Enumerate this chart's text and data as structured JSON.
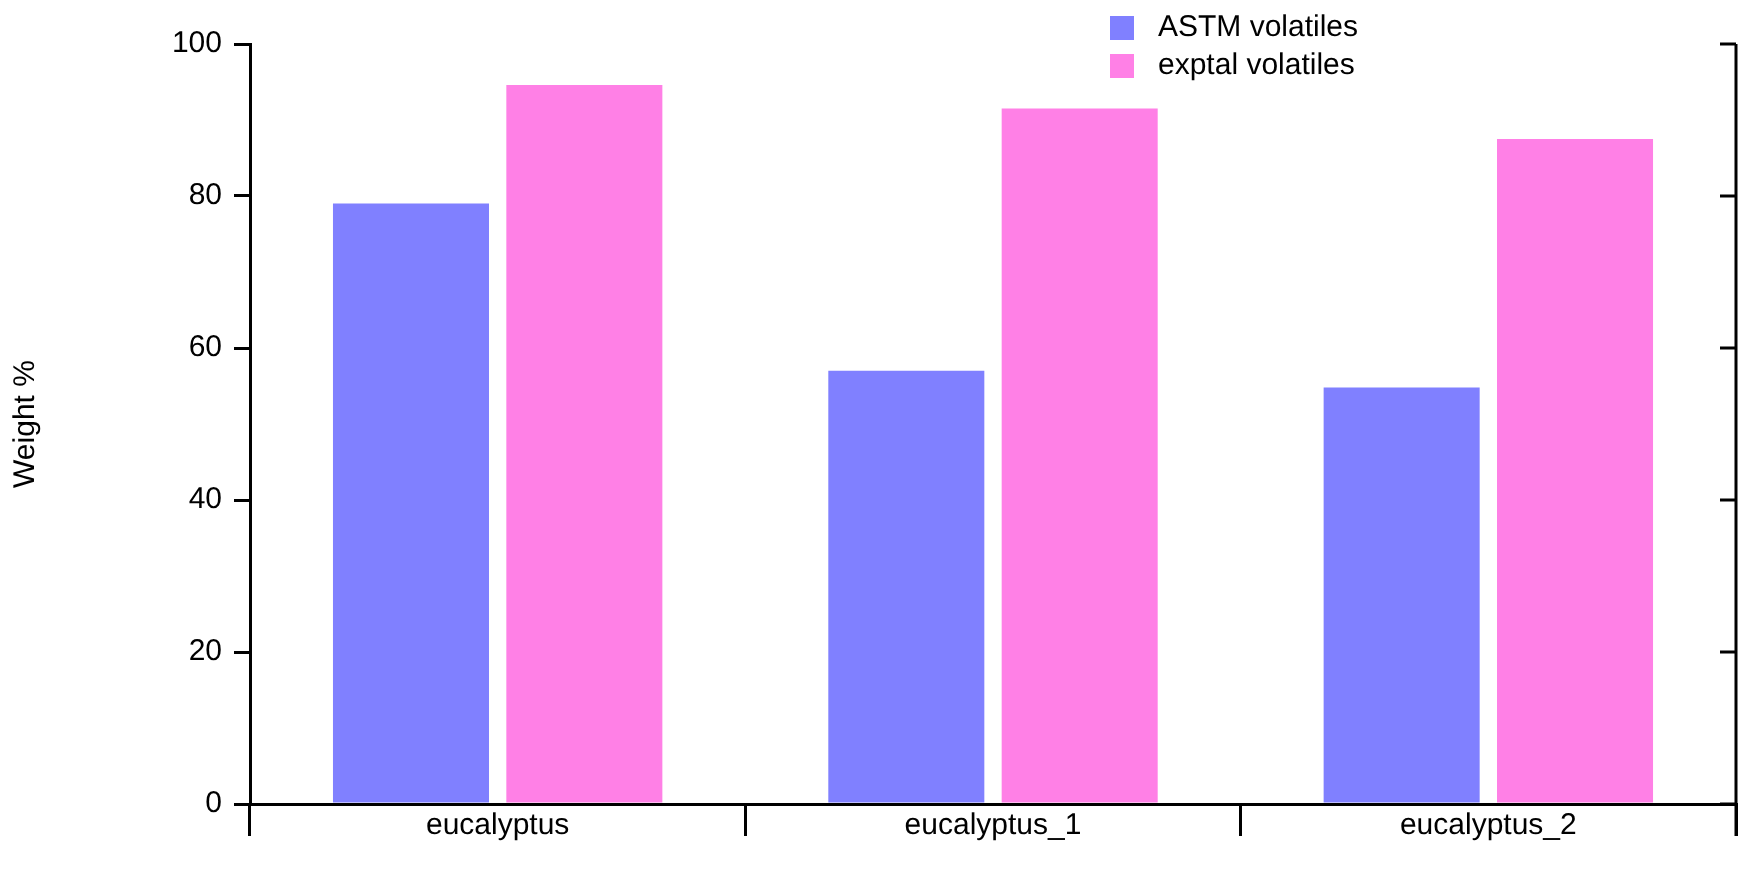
{
  "chart_data": {
    "type": "bar",
    "ylabel": "Weight %",
    "categories": [
      "eucalyptus",
      "eucalyptus_1",
      "eucalyptus_2"
    ],
    "series": [
      {
        "name": "ASTM volatiles",
        "color": "#8080ff",
        "values": [
          79,
          57,
          54.8
        ]
      },
      {
        "name": "exptal volatiles",
        "color": "#ff80e6",
        "values": [
          94.6,
          91.5,
          87.5
        ]
      }
    ],
    "ylim": [
      0,
      100
    ],
    "yticks": [
      0,
      20,
      40,
      60,
      80,
      100
    ],
    "grid": false,
    "legend": "top right"
  }
}
